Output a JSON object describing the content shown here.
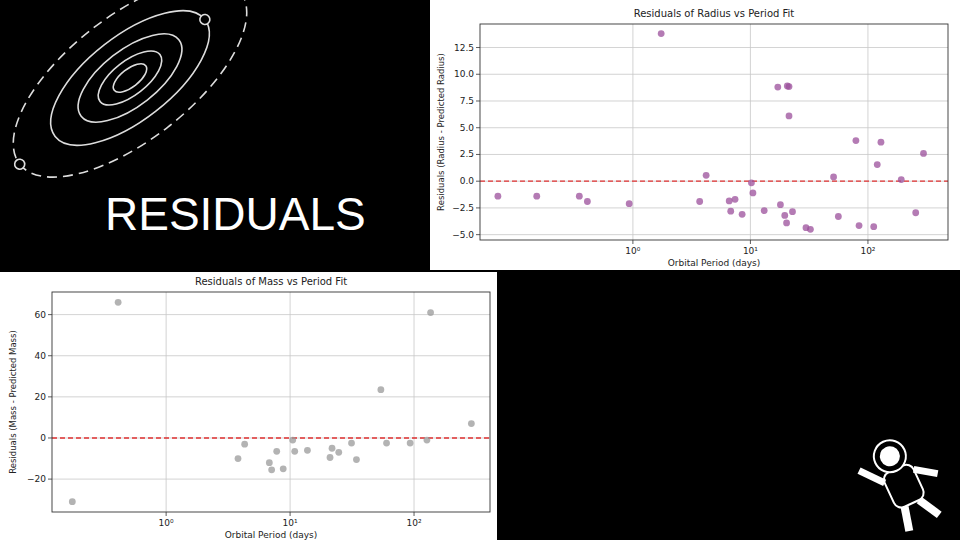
{
  "title": "RESIDUALS",
  "chart_data": [
    {
      "type": "scatter",
      "title": "Residuals of Radius vs Period Fit",
      "x_label": "Orbital Period (days)",
      "y_label": "Residuals (Radius - Predicted Radius)",
      "x": [
        0.071,
        0.152,
        0.35,
        0.41,
        0.93,
        1.74,
        3.7,
        4.2,
        6.6,
        6.8,
        7.4,
        8.5,
        10.2,
        10.5,
        13.1,
        17.1,
        18,
        19.6,
        20.3,
        20.6,
        21.3,
        21.3,
        22.8,
        29.7,
        32.4,
        51,
        56,
        79,
        84,
        112,
        120,
        129,
        192,
        255,
        297
      ],
      "values": [
        -1.4,
        -1.4,
        -1.4,
        -1.9,
        -2.1,
        13.8,
        -1.9,
        0.55,
        -1.85,
        -2.8,
        -1.7,
        -3.1,
        -0.15,
        -1.1,
        -2.75,
        8.8,
        -2.2,
        -3.2,
        -3.9,
        8.9,
        8.85,
        6.1,
        -2.85,
        -4.35,
        -4.5,
        0.4,
        -3.3,
        3.8,
        -4.15,
        -4.25,
        1.55,
        3.65,
        0.15,
        -2.95,
        2.6
      ],
      "color": "#9b4f9b",
      "marker": "circle",
      "log": "x",
      "grid": true,
      "xlim": [
        0.05,
        480
      ],
      "xticks": [
        {
          "value": 1,
          "label": "10⁰"
        },
        {
          "value": 10,
          "label": "10¹"
        },
        {
          "value": 100,
          "label": "10²"
        }
      ],
      "ylim": [
        -5.5,
        14.7
      ],
      "yticks": [
        {
          "value": -5,
          "label": "−5.0"
        },
        {
          "value": -2.5,
          "label": "−2.5"
        },
        {
          "value": 0,
          "label": "0.0"
        },
        {
          "value": 2.5,
          "label": "2.5"
        },
        {
          "value": 5,
          "label": "5.0"
        },
        {
          "value": 7.5,
          "label": "7.5"
        },
        {
          "value": 10,
          "label": "10.0"
        },
        {
          "value": 12.5,
          "label": "12.5"
        }
      ],
      "hline": {
        "y": 0,
        "color": "#e03030",
        "line_style": "dashed"
      }
    },
    {
      "type": "scatter",
      "title": "Residuals of Mass vs Period Fit",
      "x_label": "Orbital Period (days)",
      "y_label": "Residuals (Mass - Predicted Mass)",
      "x": [
        0.175,
        0.41,
        3.8,
        4.3,
        6.8,
        7.1,
        7.8,
        8.8,
        10.5,
        10.9,
        13.8,
        21,
        21.8,
        24.7,
        31.3,
        34.3,
        54,
        60,
        93,
        127,
        136,
        290
      ],
      "values": [
        -31,
        66,
        -10,
        -3,
        -12,
        -15.5,
        -6.5,
        -15,
        -1,
        -6.5,
        -6,
        -9.5,
        -5,
        -7,
        -2.5,
        -10.5,
        23.5,
        -2.5,
        -2.5,
        -1,
        61,
        7
      ],
      "color": "#999999",
      "marker": "circle",
      "log": "x",
      "grid": true,
      "xlim": [
        0.12,
        410
      ],
      "xticks": [
        {
          "value": 1,
          "label": "10⁰"
        },
        {
          "value": 10,
          "label": "10¹"
        },
        {
          "value": 100,
          "label": "10²"
        }
      ],
      "ylim": [
        -36,
        71
      ],
      "yticks": [
        {
          "value": -20,
          "label": "−20"
        },
        0,
        20,
        40,
        60
      ],
      "hline": {
        "y": 0,
        "color": "#e03030",
        "line_style": "dashed"
      }
    }
  ]
}
